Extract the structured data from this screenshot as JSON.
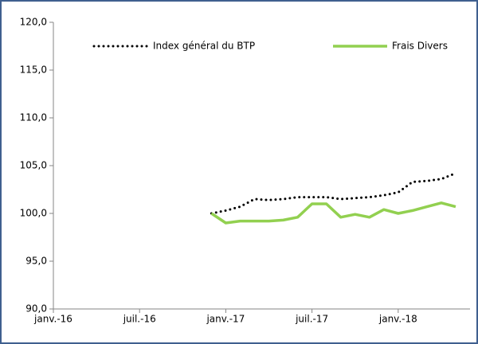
{
  "chart_data": {
    "type": "line",
    "x": [
      "2016-12",
      "2017-01",
      "2017-02",
      "2017-03",
      "2017-04",
      "2017-05",
      "2017-06",
      "2017-07",
      "2017-08",
      "2017-09",
      "2017-10",
      "2017-11",
      "2017-12",
      "2018-01",
      "2018-02",
      "2018-03",
      "2018-04",
      "2018-05"
    ],
    "series": [
      {
        "name": "Index général du BTP",
        "color": "#000000",
        "style": "dotted",
        "values": [
          100.0,
          100.3,
          100.7,
          101.5,
          101.4,
          101.5,
          101.7,
          101.7,
          101.7,
          101.5,
          101.6,
          101.7,
          101.9,
          102.2,
          103.3,
          103.4,
          103.6,
          104.2
        ]
      },
      {
        "name": "Frais Divers",
        "color": "#92d050",
        "style": "solid",
        "values": [
          100.0,
          99.0,
          99.2,
          99.2,
          99.2,
          99.3,
          99.6,
          101.0,
          101.0,
          99.6,
          99.9,
          99.6,
          100.4,
          100.0,
          100.3,
          100.7,
          101.1,
          100.7
        ]
      }
    ],
    "xlim": [
      "2016-01",
      "2018-06"
    ],
    "xticks": [
      {
        "value": "2016-01",
        "label": "janv.-16"
      },
      {
        "value": "2016-07",
        "label": "juil.-16"
      },
      {
        "value": "2017-01",
        "label": "janv.-17"
      },
      {
        "value": "2017-07",
        "label": "juil.-17"
      },
      {
        "value": "2018-01",
        "label": "janv.-18"
      }
    ],
    "ylim": [
      90,
      120
    ],
    "yticks": [
      {
        "value": 90,
        "label": "90,0"
      },
      {
        "value": 95,
        "label": "95,0"
      },
      {
        "value": 100,
        "label": "100,0"
      },
      {
        "value": 105,
        "label": "105,0"
      },
      {
        "value": 110,
        "label": "110,0"
      },
      {
        "value": 115,
        "label": "115,0"
      },
      {
        "value": 120,
        "label": "120,0"
      }
    ],
    "grid": false
  }
}
